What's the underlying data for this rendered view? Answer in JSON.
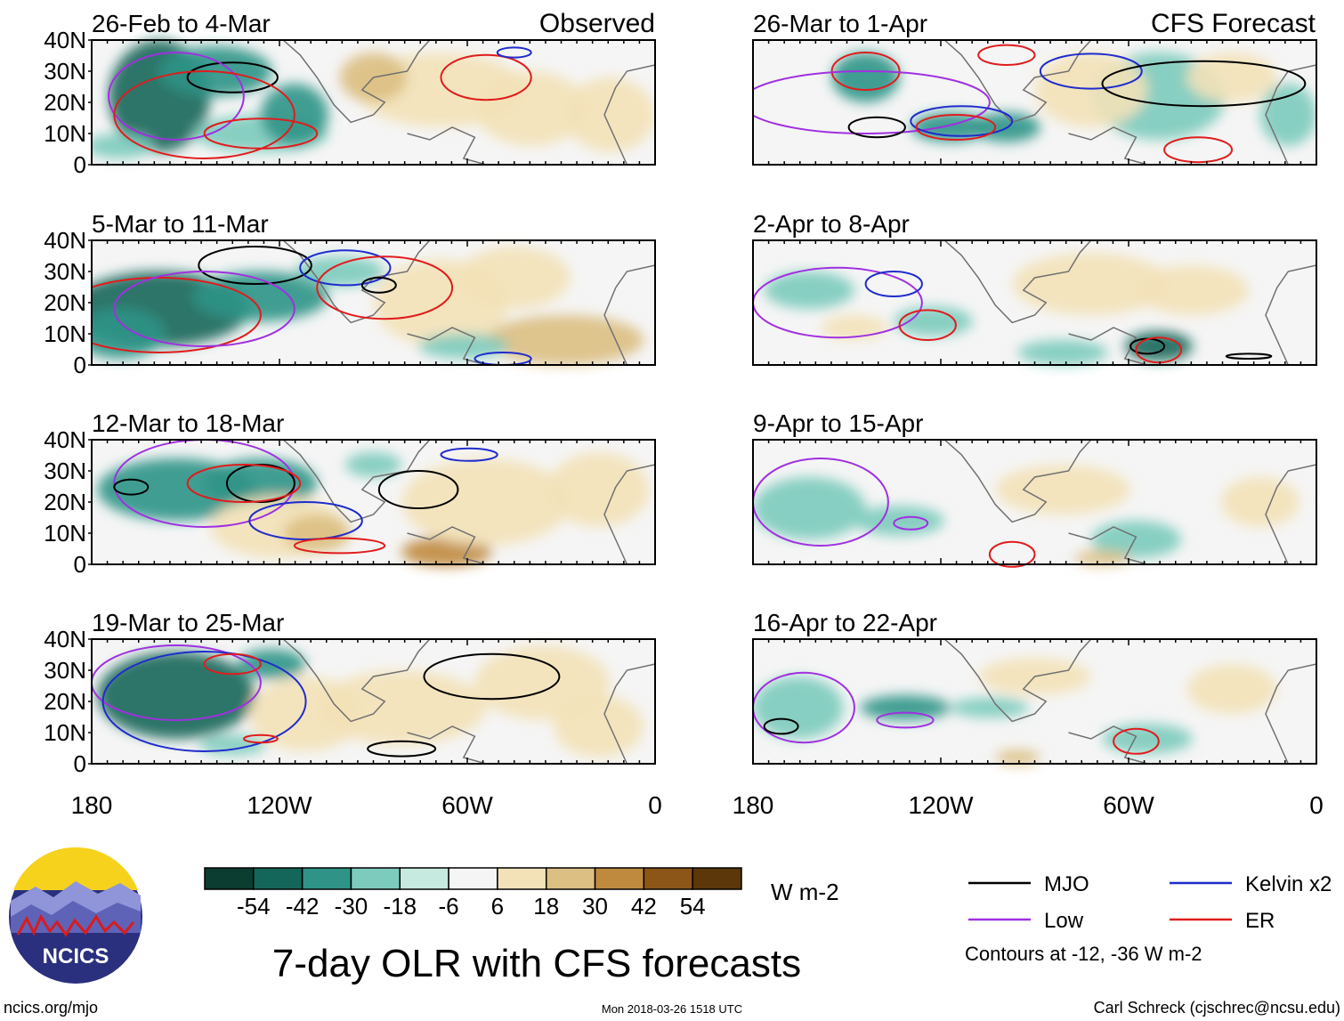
{
  "figure": {
    "title": "7-day OLR with CFS forecasts",
    "observed_label": "Observed",
    "forecast_label": "CFS Forecast",
    "units": "W m-2",
    "contour_note": "Contours at -12, -36 W m-2",
    "site": "ncics.org/mjo",
    "timestamp": "Mon 2018-03-26 1518 UTC",
    "author": "Carl Schreck (cjschrec@ncsu.edu)",
    "logo_text": "NCICS"
  },
  "chart_data": {
    "type": "heatmap",
    "lat_ticks": [
      "40N",
      "30N",
      "20N",
      "10N",
      "0"
    ],
    "lon_ticks": [
      "180",
      "120W",
      "60W",
      "0"
    ],
    "xlim": [
      -180,
      0
    ],
    "ylim": [
      0,
      40
    ],
    "panels": [
      {
        "column": "observed",
        "period": "26-Feb to 4-Mar"
      },
      {
        "column": "observed",
        "period": "5-Mar to 11-Mar"
      },
      {
        "column": "observed",
        "period": "12-Mar to 18-Mar"
      },
      {
        "column": "observed",
        "period": "19-Mar to 25-Mar"
      },
      {
        "column": "forecast",
        "period": "26-Mar to 1-Apr"
      },
      {
        "column": "forecast",
        "period": "2-Apr to 8-Apr"
      },
      {
        "column": "forecast",
        "period": "9-Apr to 15-Apr"
      },
      {
        "column": "forecast",
        "period": "16-Apr to 22-Apr"
      }
    ],
    "colorbar": {
      "labels": [
        "-54",
        "-42",
        "-30",
        "-18",
        "-6",
        "6",
        "18",
        "30",
        "42",
        "54"
      ],
      "colors": [
        "#0c3d31",
        "#14665a",
        "#2f9487",
        "#7ccbbd",
        "#c6eadf",
        "#f5f5f5",
        "#f3e2b8",
        "#dcbf82",
        "#c08a3e",
        "#8c5618",
        "#5b3709"
      ]
    },
    "legend": [
      {
        "label": "MJO",
        "color": "#000000"
      },
      {
        "label": "Kelvin x2",
        "color": "#1f2ccc"
      },
      {
        "label": "Low",
        "color": "#a030e0"
      },
      {
        "label": "ER",
        "color": "#e01c1c"
      }
    ]
  }
}
